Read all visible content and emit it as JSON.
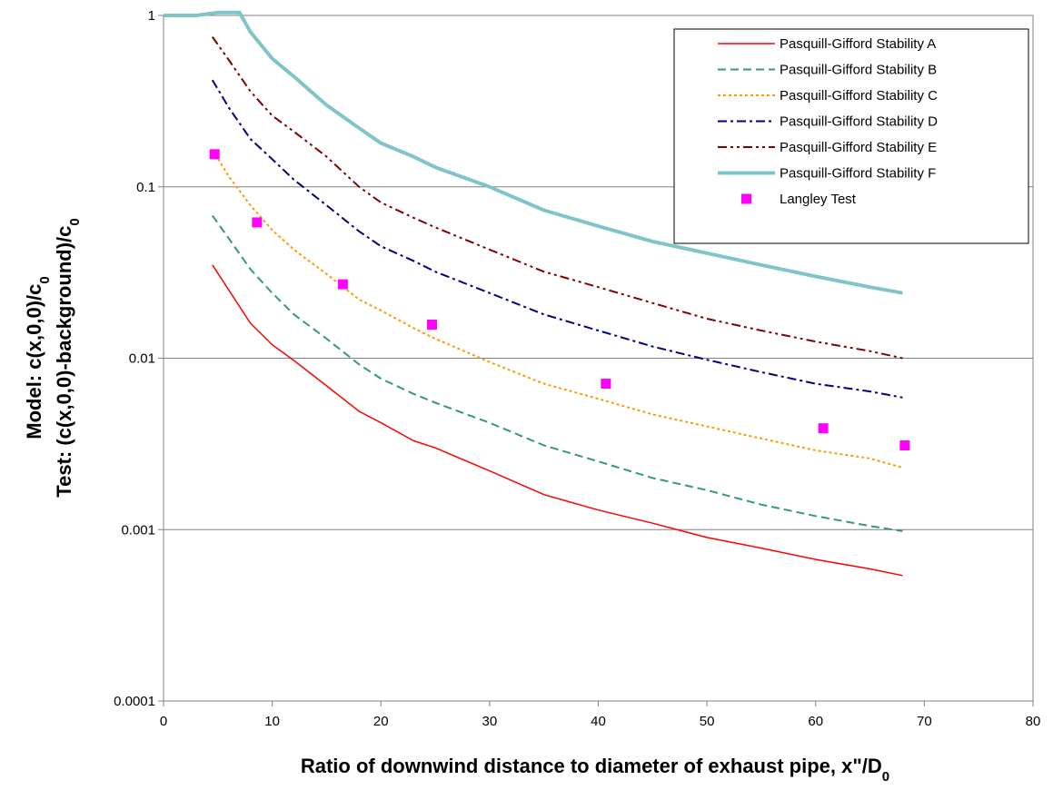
{
  "chart_data": {
    "type": "line",
    "title": "",
    "xlabel": "Ratio of downwind distance  to diameter of exhaust pipe, x\"/D",
    "xlabel_sub": "0",
    "ylabel_model": "Model: c(x,0,0)/c",
    "ylabel_model_sub": "0",
    "ylabel_test": "Test: (c(x,0,0)-background)/c",
    "ylabel_test_sub": "0",
    "xlim": [
      0,
      80
    ],
    "ylim": [
      0.0001,
      1
    ],
    "yscale": "log",
    "grid": "horizontal",
    "legend_position": "top-right",
    "x_ticks": [
      "0",
      "10",
      "20",
      "30",
      "40",
      "50",
      "60",
      "70",
      "80"
    ],
    "y_ticks": [
      "1",
      "0.1",
      "0.01",
      "0.001",
      "0.0001"
    ],
    "series": [
      {
        "name": "Pasquill-Gifford Stability A",
        "color": "#ff0000",
        "style": "solid",
        "x": [
          4.5,
          6,
          8,
          10,
          12,
          15,
          18,
          20,
          23,
          25,
          30,
          35,
          40,
          45,
          50,
          55,
          60,
          65,
          68
        ],
        "y": [
          0.035,
          0.025,
          0.016,
          0.012,
          0.0097,
          0.0069,
          0.0049,
          0.0042,
          0.0033,
          0.003,
          0.0022,
          0.0016,
          0.0013,
          0.00109,
          0.0009,
          0.00078,
          0.00067,
          0.00059,
          0.00054
        ]
      },
      {
        "name": "Pasquill-Gifford Stability B",
        "color": "#339977",
        "style": "dash",
        "x": [
          4.5,
          6,
          8,
          10,
          12,
          15,
          18,
          20,
          23,
          25,
          30,
          35,
          40,
          45,
          50,
          55,
          60,
          65,
          68
        ],
        "y": [
          0.068,
          0.05,
          0.033,
          0.024,
          0.018,
          0.013,
          0.0092,
          0.0076,
          0.0062,
          0.0055,
          0.0042,
          0.0031,
          0.0025,
          0.002,
          0.0017,
          0.0014,
          0.0012,
          0.00105,
          0.00098
        ]
      },
      {
        "name": "Pasquill-Gifford Stability C",
        "color": "#ff9900",
        "style": "dot",
        "x": [
          4.5,
          6,
          8,
          10,
          12,
          15,
          18,
          20,
          23,
          25,
          30,
          35,
          40,
          45,
          50,
          55,
          60,
          65,
          68
        ],
        "y": [
          0.165,
          0.115,
          0.078,
          0.056,
          0.043,
          0.031,
          0.022,
          0.019,
          0.015,
          0.013,
          0.0095,
          0.0071,
          0.0058,
          0.0047,
          0.004,
          0.0034,
          0.0029,
          0.0026,
          0.0023
        ]
      },
      {
        "name": "Pasquill-Gifford Stability D",
        "color": "#000080",
        "style": "dashdot",
        "x": [
          4.5,
          6,
          8,
          10,
          12,
          15,
          18,
          20,
          23,
          25,
          30,
          35,
          40,
          45,
          50,
          55,
          60,
          65,
          68
        ],
        "y": [
          0.42,
          0.29,
          0.19,
          0.145,
          0.11,
          0.078,
          0.055,
          0.045,
          0.037,
          0.032,
          0.024,
          0.018,
          0.0145,
          0.0117,
          0.0098,
          0.0083,
          0.0071,
          0.0064,
          0.0059
        ]
      },
      {
        "name": "Pasquill-Gifford Stability E",
        "color": "#800000",
        "style": "dashdotdot",
        "x": [
          4.5,
          6,
          8,
          10,
          12,
          15,
          18,
          20,
          23,
          25,
          30,
          35,
          40,
          45,
          50,
          55,
          60,
          65,
          68
        ],
        "y": [
          0.75,
          0.55,
          0.36,
          0.26,
          0.21,
          0.15,
          0.1,
          0.081,
          0.066,
          0.058,
          0.043,
          0.032,
          0.026,
          0.021,
          0.017,
          0.0145,
          0.0125,
          0.011,
          0.01
        ]
      },
      {
        "name": "Pasquill-Gifford Stability F",
        "color": "#7fc4c8",
        "style": "thick",
        "x": [
          0,
          3,
          5,
          7,
          8,
          10,
          12,
          15,
          18,
          20,
          23,
          25,
          30,
          35,
          40,
          45,
          50,
          55,
          60,
          65,
          68
        ],
        "y": [
          1.0,
          1.0,
          1.04,
          1.04,
          0.8,
          0.56,
          0.44,
          0.3,
          0.22,
          0.18,
          0.15,
          0.13,
          0.1,
          0.073,
          0.059,
          0.048,
          0.041,
          0.035,
          0.03,
          0.026,
          0.024
        ]
      }
    ],
    "test_series": {
      "name": "Langley Test",
      "color": "#ff00ff",
      "x": [
        4.7,
        8.6,
        16.5,
        24.7,
        40.7,
        60.7,
        68.2
      ],
      "y": [
        0.155,
        0.062,
        0.027,
        0.0157,
        0.0071,
        0.0039,
        0.0031
      ]
    }
  }
}
